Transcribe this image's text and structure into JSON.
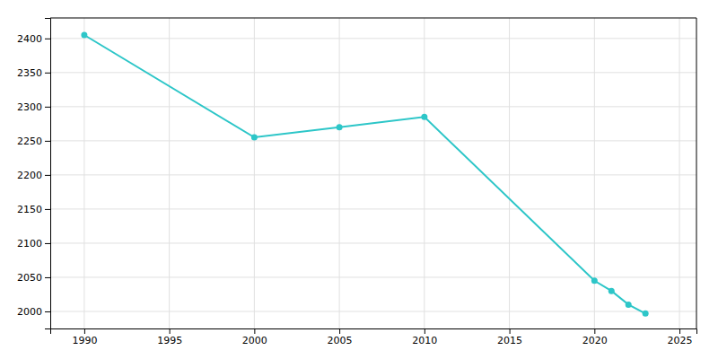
{
  "chart_data": {
    "type": "line",
    "x": [
      1990,
      2000,
      2005,
      2010,
      2020,
      2021,
      2022,
      2023
    ],
    "values": [
      2405,
      2255,
      2270,
      2285,
      2045,
      2030,
      2010,
      1997
    ],
    "color": "#2DC6C8",
    "marker": "circle",
    "xlim": [
      1988,
      2026
    ],
    "ylim": [
      1975,
      2430
    ],
    "xticks": [
      1990,
      1995,
      2000,
      2005,
      2010,
      2015,
      2020,
      2025
    ],
    "yticks": [
      2000,
      2050,
      2100,
      2150,
      2200,
      2250,
      2300,
      2350,
      2400
    ],
    "grid": true
  }
}
